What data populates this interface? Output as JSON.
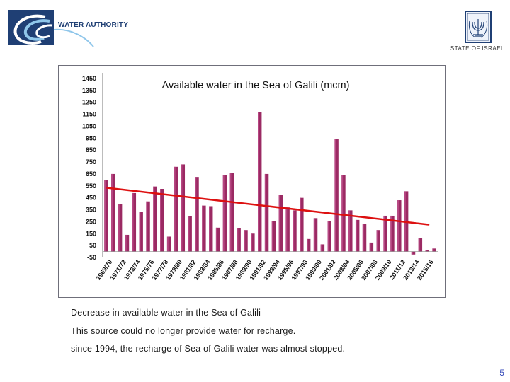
{
  "header": {
    "logo_text": "WATER AUTHORITY",
    "state_label": "STATE OF ISRAEL"
  },
  "captions": [
    "Decrease in available water in the Sea of Galili",
    "This source could no longer provide water for recharge.",
    "since 1994, the recharge of Sea of Galili water was almost stopped."
  ],
  "page_number": "5",
  "chart_data": {
    "type": "bar",
    "title": "Available water in the Sea of Galili (mcm)",
    "xlabel": "",
    "ylabel": "",
    "ylim": [
      -50,
      1450
    ],
    "yticks": [
      1450,
      1350,
      1250,
      1150,
      1050,
      950,
      850,
      750,
      650,
      550,
      450,
      350,
      250,
      150,
      50,
      -50
    ],
    "xtick_labels": [
      "1969/70",
      "1971/72",
      "1973/74",
      "1975/76",
      "1977/78",
      "1979/80",
      "1981/82",
      "1983/84",
      "1985/86",
      "1987/88",
      "1989/90",
      "1991/92",
      "1993/94",
      "1995/96",
      "1997/98",
      "1999/00",
      "2001/02",
      "2003/04",
      "2005/06",
      "2007/08",
      "2009/10",
      "2011/12",
      "2013/14",
      "2015/16"
    ],
    "bar_color": "#9b2a63",
    "trend_color": "#dd1010",
    "trend_line": {
      "start": 535,
      "end": 225
    },
    "values": [
      600,
      650,
      400,
      140,
      490,
      335,
      420,
      545,
      525,
      125,
      710,
      730,
      295,
      625,
      385,
      380,
      200,
      640,
      660,
      195,
      180,
      150,
      1170,
      650,
      255,
      475,
      370,
      345,
      450,
      105,
      280,
      60,
      255,
      940,
      640,
      345,
      265,
      230,
      75,
      180,
      300,
      300,
      430,
      505,
      -25,
      115,
      15,
      25
    ],
    "grid": false,
    "legend": "none"
  }
}
